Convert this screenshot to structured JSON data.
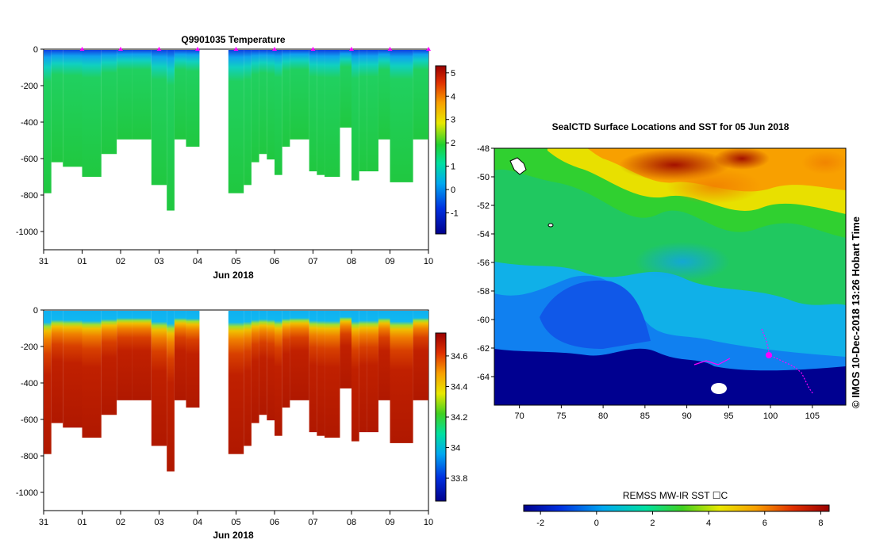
{
  "chart_data": [
    {
      "type": "heatmap",
      "title": "Q9901035  Temperature",
      "xlabel": "Jun 2018",
      "ylabel": "",
      "x_ticks": [
        "31",
        "01",
        "02",
        "03",
        "04",
        "05",
        "06",
        "07",
        "08",
        "09",
        "10"
      ],
      "xlim": [
        0,
        10
      ],
      "ylim": [
        -1100,
        0
      ],
      "y_ticks": [
        0,
        -200,
        -400,
        -600,
        -800,
        -1000
      ],
      "colorbar": {
        "ticks": [
          5,
          4,
          3,
          2,
          1,
          0,
          -1
        ],
        "range": [
          -1.9,
          5.3
        ]
      },
      "profile_markers_day": [
        1,
        2,
        3,
        4,
        5,
        6,
        7,
        8,
        9,
        10
      ],
      "profiles": [
        {
          "start": 0.0,
          "end": 0.2,
          "depth": -790
        },
        {
          "start": 0.2,
          "end": 0.5,
          "depth": -620
        },
        {
          "start": 0.5,
          "end": 1.0,
          "depth": -645
        },
        {
          "start": 1.0,
          "end": 1.5,
          "depth": -700
        },
        {
          "start": 1.5,
          "end": 1.9,
          "depth": -575
        },
        {
          "start": 1.9,
          "end": 2.3,
          "depth": -495
        },
        {
          "start": 2.3,
          "end": 2.8,
          "depth": -495
        },
        {
          "start": 2.8,
          "end": 3.2,
          "depth": -745
        },
        {
          "start": 3.2,
          "end": 3.4,
          "depth": -885
        },
        {
          "start": 3.4,
          "end": 3.7,
          "depth": -495
        },
        {
          "start": 3.7,
          "end": 4.0,
          "depth": -535
        },
        {
          "start": 4.0,
          "end": 4.05,
          "depth": -535
        },
        {
          "start": 4.8,
          "end": 5.2,
          "depth": -790
        },
        {
          "start": 5.2,
          "end": 5.4,
          "depth": -745
        },
        {
          "start": 5.4,
          "end": 5.6,
          "depth": -620
        },
        {
          "start": 5.6,
          "end": 5.8,
          "depth": -575
        },
        {
          "start": 5.8,
          "end": 6.0,
          "depth": -605
        },
        {
          "start": 6.0,
          "end": 6.2,
          "depth": -690
        },
        {
          "start": 6.2,
          "end": 6.4,
          "depth": -535
        },
        {
          "start": 6.4,
          "end": 6.9,
          "depth": -495
        },
        {
          "start": 6.9,
          "end": 7.1,
          "depth": -670
        },
        {
          "start": 7.1,
          "end": 7.3,
          "depth": -690
        },
        {
          "start": 7.3,
          "end": 7.7,
          "depth": -700
        },
        {
          "start": 7.7,
          "end": 8.0,
          "depth": -430
        },
        {
          "start": 8.0,
          "end": 8.2,
          "depth": -720
        },
        {
          "start": 8.2,
          "end": 8.4,
          "depth": -670
        },
        {
          "start": 8.4,
          "end": 8.7,
          "depth": -670
        },
        {
          "start": 8.7,
          "end": 9.0,
          "depth": -495
        },
        {
          "start": 9.0,
          "end": 9.6,
          "depth": -730
        },
        {
          "start": 9.6,
          "end": 10.0,
          "depth": -495
        }
      ]
    },
    {
      "type": "heatmap",
      "title": "",
      "xlabel": "Jun 2018",
      "ylabel": "",
      "x_ticks": [
        "31",
        "01",
        "02",
        "03",
        "04",
        "05",
        "06",
        "07",
        "08",
        "09",
        "10"
      ],
      "xlim": [
        0,
        10
      ],
      "ylim": [
        -1100,
        0
      ],
      "y_ticks": [
        0,
        -200,
        -400,
        -600,
        -800,
        -1000
      ],
      "colorbar": {
        "ticks": [
          "34.6",
          "34.4",
          "34.2",
          "34",
          "33.8"
        ],
        "range": [
          33.65,
          34.75
        ]
      }
    },
    {
      "type": "heatmap",
      "title": "SealCTD Surface Locations and SST for 05 Jun 2018",
      "xlabel": "",
      "ylabel": "",
      "xlim": [
        67,
        109
      ],
      "ylim": [
        -66,
        -48
      ],
      "x_ticks": [
        70,
        75,
        80,
        85,
        90,
        95,
        100,
        105
      ],
      "y_ticks": [
        -48,
        -50,
        -52,
        -54,
        -56,
        -58,
        -60,
        -62,
        -64
      ],
      "colorbar": {
        "label": "REMSS MW-IR SST ☐C",
        "ticks": [
          -2,
          0,
          2,
          4,
          6,
          8
        ],
        "range": [
          -2.6,
          8.3
        ]
      },
      "side_label": "©  IMOS 10-Dec-2018 13:26 Hobart Time"
    }
  ]
}
